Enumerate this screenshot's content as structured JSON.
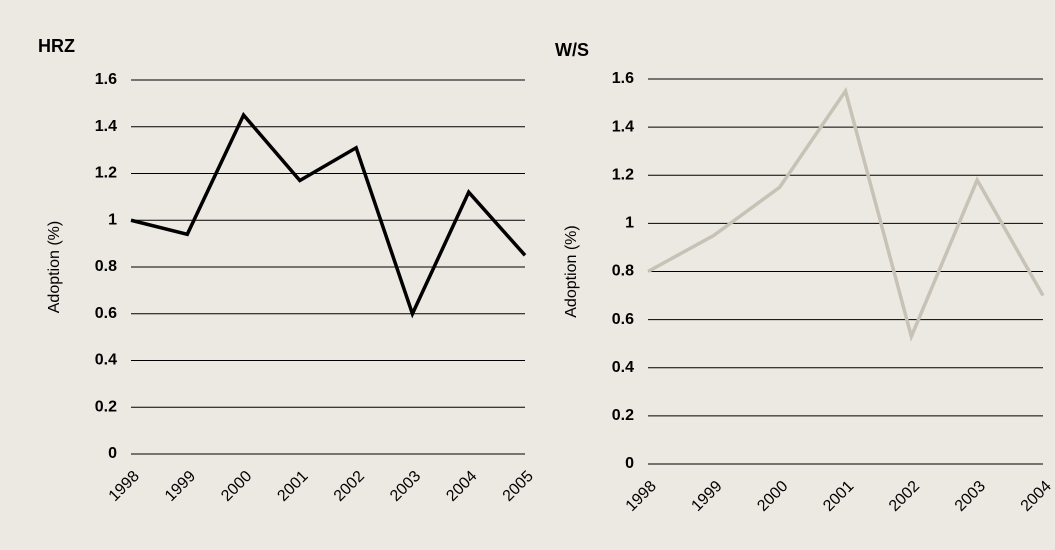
{
  "chart_data": [
    {
      "type": "line",
      "title": "HRZ",
      "y_label": "Adoption (%)",
      "categories": [
        "1998",
        "1999",
        "2000",
        "2001",
        "2002",
        "2003",
        "2004",
        "2005"
      ],
      "series": [
        {
          "name": "HRZ",
          "color": "#000000",
          "values": [
            1.0,
            0.94,
            1.45,
            1.17,
            1.31,
            0.6,
            1.12,
            0.85
          ]
        }
      ],
      "ylim": [
        0,
        1.6
      ],
      "yticks": [
        0,
        0.2,
        0.4,
        0.6,
        0.8,
        1,
        1.2,
        1.4,
        1.6
      ],
      "grid": true
    },
    {
      "type": "line",
      "title": "W/S",
      "y_label": "Adoption (%)",
      "categories": [
        "1998",
        "1999",
        "2000",
        "2001",
        "2002",
        "2003",
        "2004"
      ],
      "series": [
        {
          "name": "W/S",
          "color": "#c8c2b6",
          "values": [
            0.8,
            0.95,
            1.15,
            1.55,
            0.53,
            1.18,
            0.7
          ]
        }
      ],
      "ylim": [
        0,
        1.6
      ],
      "yticks": [
        0,
        0.2,
        0.4,
        0.6,
        0.8,
        1,
        1.2,
        1.4,
        1.6
      ],
      "grid": true
    }
  ]
}
